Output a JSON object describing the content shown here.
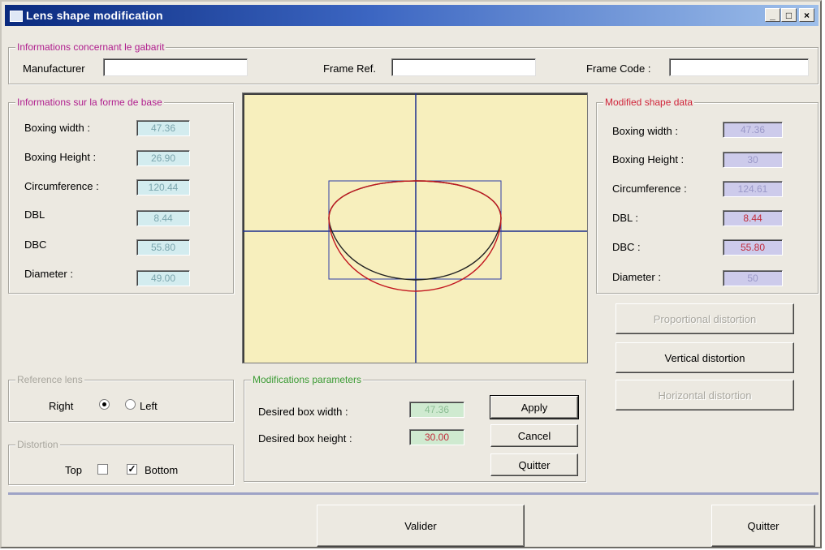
{
  "window": {
    "title": "Lens shape modification",
    "minimize": "_",
    "maximize": "□",
    "close": "×"
  },
  "template_info": {
    "title": "Informations concernant le gabarit",
    "manufacturer_label": "Manufacturer",
    "manufacturer_value": "",
    "frame_ref_label": "Frame Ref.",
    "frame_ref_value": "",
    "frame_code_label": "Frame Code :",
    "frame_code_value": ""
  },
  "base_shape": {
    "title": "Informations sur la forme de base",
    "boxing_width_label": "Boxing width :",
    "boxing_width": "47.36",
    "boxing_height_label": "Boxing Height :",
    "boxing_height": "26.90",
    "circumference_label": "Circumference :",
    "circumference": "120.44",
    "dbl_label": "DBL",
    "dbl": "8.44",
    "dbc_label": "DBC",
    "dbc": "55.80",
    "diameter_label": "Diameter :",
    "diameter": "49.00"
  },
  "modified_shape": {
    "title": "Modified shape data",
    "boxing_width_label": "Boxing width :",
    "boxing_width": "47.36",
    "boxing_height_label": "Boxing Height :",
    "boxing_height": "30",
    "circumference_label": "Circumference :",
    "circumference": "124.61",
    "dbl_label": "DBL :",
    "dbl": "8.44",
    "dbc_label": "DBC :",
    "dbc": "55.80",
    "diameter_label": "Diameter :",
    "diameter": "50"
  },
  "distortion_buttons": {
    "proportional": "Proportional distortion",
    "vertical": "Vertical distortion",
    "horizontal": "Horizontal distortion"
  },
  "reference_lens": {
    "title": "Reference lens",
    "right_label": "Right",
    "left_label": "Left",
    "selected": "Right"
  },
  "distortion": {
    "title": "Distortion",
    "top_label": "Top",
    "bottom_label": "Bottom",
    "top_checked": false,
    "bottom_checked": true
  },
  "modifications": {
    "title": "Modifications parameters",
    "desired_width_label": "Desired box width :",
    "desired_width": "47.36",
    "desired_height_label": "Desired box height :",
    "desired_height": "30.00",
    "apply_label": "Apply",
    "cancel_label": "Cancel",
    "quit_label": "Quitter"
  },
  "footer": {
    "validate_label": "Valider",
    "quit_label": "Quitter"
  },
  "colors": {
    "canvas_bg": "#f7efbd",
    "axes": "#1d2f8f",
    "bounding_box": "#2c3ca8",
    "original_shape": "#222222",
    "modified_shape": "#c2161f"
  }
}
